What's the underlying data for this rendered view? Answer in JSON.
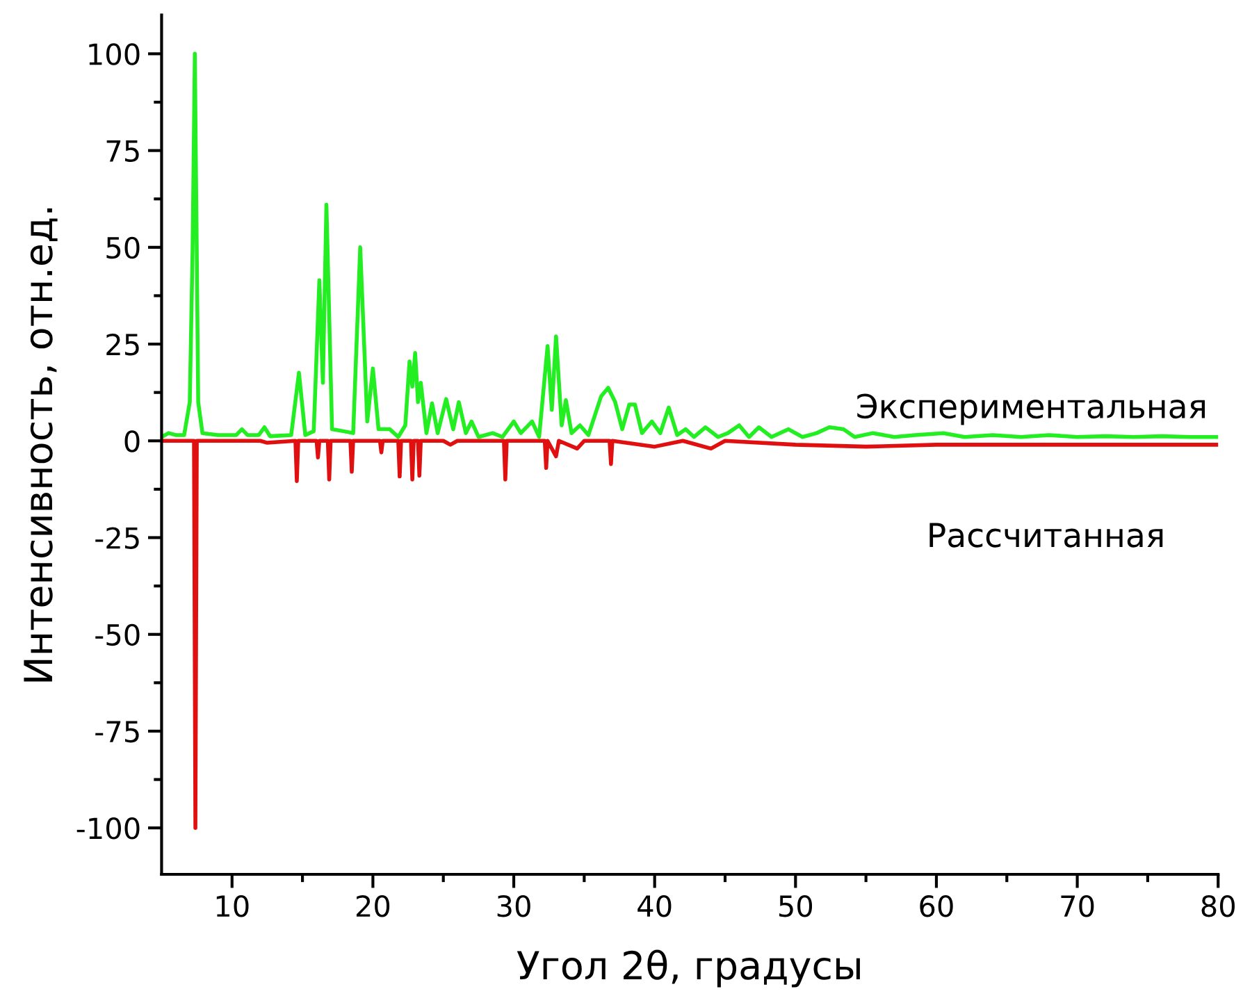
{
  "chart_data": {
    "type": "line",
    "xlabel": "Угол 2θ, градусы",
    "ylabel": "Интенсивность, отн.ед.",
    "xlim": [
      5,
      80
    ],
    "ylim": [
      -112,
      110
    ],
    "xticks": [
      10,
      {
        "value": 15,
        "label": null
      },
      20,
      {
        "value": 25,
        "label": null
      },
      30,
      {
        "value": 35,
        "label": null
      },
      40,
      {
        "value": 45,
        "label": null
      },
      50,
      {
        "value": 55,
        "label": null
      },
      60,
      {
        "value": 65,
        "label": null
      },
      70,
      {
        "value": 75,
        "label": null
      },
      80
    ],
    "yticks": [
      -100,
      {
        "value": -87.5,
        "label": null
      },
      -75,
      {
        "value": -62.5,
        "label": null
      },
      -50,
      {
        "value": -37.5,
        "label": null
      },
      -25,
      {
        "value": -12.5,
        "label": null
      },
      0,
      {
        "value": 12.5,
        "label": null
      },
      25,
      {
        "value": 37.5,
        "label": null
      },
      50,
      {
        "value": 62.5,
        "label": null
      },
      75,
      {
        "value": 87.5,
        "label": null
      },
      100
    ],
    "grid": false,
    "legend": false,
    "line_style": "solid",
    "marker": "none",
    "series": [
      {
        "name": "Экспериментальная",
        "color": "#22ee22",
        "x": [
          5,
          5.5,
          6,
          6.6,
          7.0,
          7.2,
          7.36,
          7.6,
          7.9,
          9,
          10.3,
          10.7,
          11.1,
          11.9,
          12.3,
          12.7,
          14.2,
          14.75,
          15.2,
          15.8,
          16.2,
          16.45,
          16.7,
          17.1,
          17.9,
          18.6,
          19.1,
          19.6,
          20.0,
          20.4,
          21.2,
          21.8,
          22.3,
          22.6,
          22.8,
          23.0,
          23.2,
          23.4,
          23.8,
          24.2,
          24.6,
          25.2,
          25.7,
          26.1,
          26.6,
          27.0,
          27.5,
          28.5,
          29.2,
          30.0,
          30.5,
          31.3,
          31.8,
          32.4,
          32.7,
          33.0,
          33.4,
          33.7,
          34.1,
          34.7,
          35.3,
          36.2,
          36.7,
          37.2,
          37.7,
          38.2,
          38.6,
          39.1,
          39.8,
          40.4,
          41.0,
          41.6,
          42.2,
          42.8,
          43.6,
          44.5,
          45.2,
          46.0,
          46.7,
          47.4,
          48.3,
          49.5,
          50.5,
          51.5,
          52.4,
          53.4,
          54.2,
          55.5,
          57,
          58.5,
          60.5,
          62,
          64,
          66,
          68,
          70,
          72,
          74,
          76,
          78,
          80
        ],
        "values": [
          1,
          2,
          1.5,
          1.5,
          10,
          49,
          100,
          10,
          2,
          1.5,
          1.5,
          3,
          1.5,
          1.5,
          3.5,
          1.2,
          1.5,
          17.6,
          1.5,
          2.5,
          41.5,
          15,
          61,
          3,
          2.5,
          2,
          50,
          5,
          18.7,
          3,
          3,
          1,
          4,
          20.5,
          14,
          22.7,
          10,
          15,
          2,
          9.7,
          2,
          10.8,
          3,
          10,
          2,
          5,
          1,
          2,
          1,
          5,
          2,
          5,
          1,
          24.5,
          8,
          27,
          4,
          10.5,
          2,
          4,
          1.5,
          11.5,
          13.7,
          10,
          3,
          9.4,
          9.4,
          2,
          5,
          2,
          8.6,
          1.5,
          3,
          1,
          3.5,
          1,
          2,
          4,
          1,
          3.5,
          1,
          3,
          1,
          2,
          3.5,
          3,
          1,
          2,
          1,
          1.5,
          2,
          1,
          1.5,
          1,
          1.5,
          1,
          1.2,
          1,
          1.2,
          1,
          1
        ]
      },
      {
        "name": "Рассчитанная",
        "color": "#e01010",
        "x": [
          5,
          7.3,
          7.4,
          7.5,
          12,
          12.5,
          14.5,
          14.6,
          14.7,
          16.0,
          16.1,
          16.2,
          16.8,
          16.9,
          17.0,
          18.4,
          18.5,
          18.6,
          20.5,
          20.6,
          20.7,
          21.8,
          21.9,
          22.0,
          22.7,
          22.8,
          22.9,
          23.2,
          23.3,
          23.4,
          25,
          25.5,
          26,
          29.3,
          29.4,
          29.5,
          32.2,
          32.3,
          32.4,
          33.0,
          33.2,
          34.5,
          35,
          36.8,
          36.9,
          37.0,
          40,
          42,
          44,
          45,
          50,
          55,
          60,
          70,
          80
        ],
        "values": [
          0,
          0,
          -100,
          0,
          0,
          -0.5,
          0,
          -10.4,
          0,
          0,
          -4.3,
          0,
          0,
          -10,
          0,
          0,
          -8,
          0,
          0,
          -3,
          0,
          0,
          -9.2,
          0,
          0,
          -10,
          0,
          0,
          -9,
          0,
          0,
          -1,
          0,
          0,
          -10,
          0,
          0,
          -7,
          0,
          -4,
          0,
          -2,
          0,
          0,
          -6,
          0,
          -1.5,
          0,
          -2,
          0,
          -1,
          -1.5,
          -1,
          -1,
          -1
        ]
      }
    ]
  }
}
